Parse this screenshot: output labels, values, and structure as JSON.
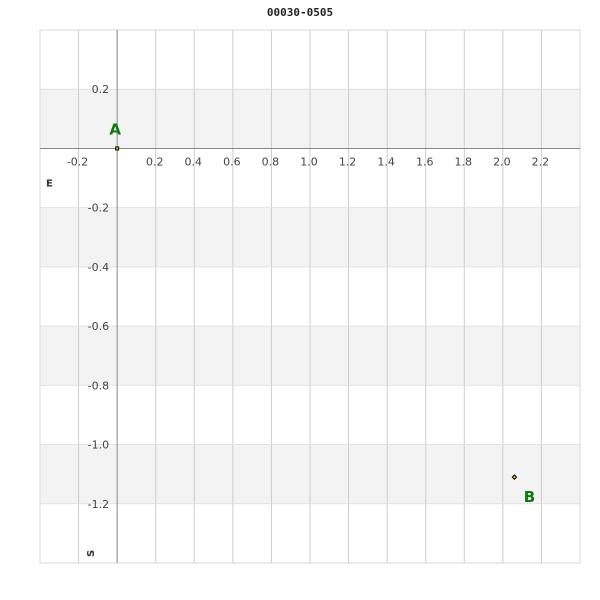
{
  "chart_data": {
    "type": "scatter",
    "title": "00030-0505",
    "xlabel": "E",
    "ylabel": "S",
    "xlim": [
      -0.4,
      2.4
    ],
    "ylim": [
      -1.4,
      0.4
    ],
    "grid": true,
    "x_ticks": [
      "-0.2",
      "0.2",
      "0.4",
      "0.6",
      "0.8",
      "1.0",
      "1.2",
      "1.4",
      "1.6",
      "1.8",
      "2.0",
      "2.2"
    ],
    "y_ticks": [
      "0.2",
      "-0.2",
      "-0.4",
      "-0.6",
      "-0.8",
      "-1.0",
      "-1.2"
    ],
    "points": [
      {
        "label": "A",
        "x": 0,
        "y": 0
      },
      {
        "label": "B",
        "x": 2.06,
        "y": -1.11
      }
    ],
    "colors": {
      "label": "#0a7a0a",
      "band": "#f3f3f3",
      "grid": "#cccccc",
      "axis": "#888888"
    }
  }
}
